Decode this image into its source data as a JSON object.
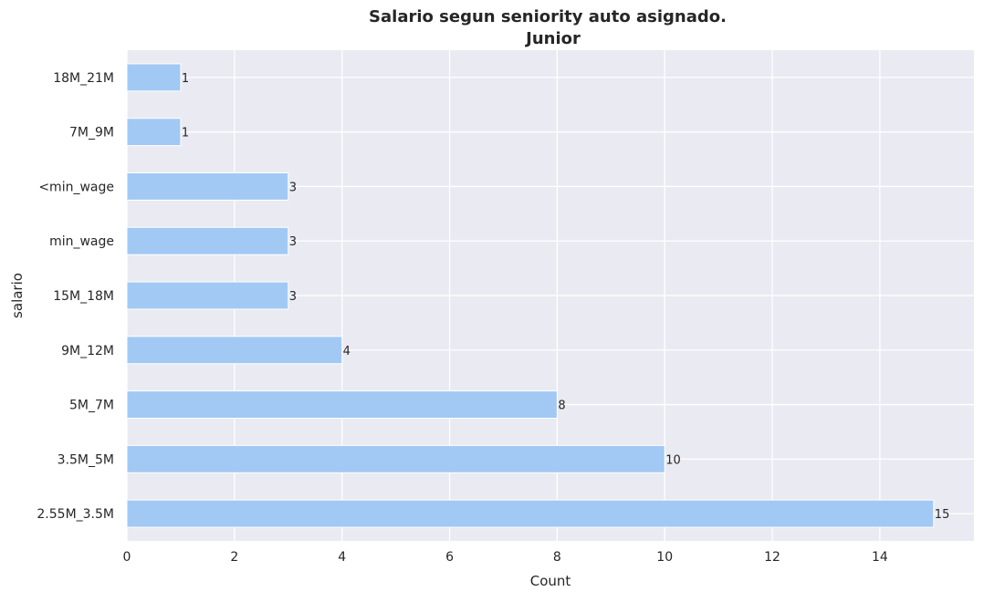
{
  "chart_data": {
    "type": "bar",
    "orientation": "horizontal",
    "title": "Salario segun seniority auto asignado.",
    "subtitle": "Junior",
    "xlabel": "Count",
    "ylabel": "salario",
    "categories": [
      "18M_21M",
      "7M_9M",
      "<min_wage",
      "min_wage",
      "15M_18M",
      "9M_12M",
      "5M_7M",
      "3.5M_5M",
      "2.55M_3.5M"
    ],
    "values": [
      1,
      1,
      3,
      3,
      3,
      4,
      8,
      10,
      15
    ],
    "data_labels": [
      "1",
      "1",
      "3",
      "3",
      "3",
      "4",
      "8",
      "10",
      "15"
    ],
    "xlim": [
      0,
      15.75
    ],
    "xticks": [
      "0",
      "2",
      "4",
      "6",
      "8",
      "10",
      "12",
      "14"
    ],
    "xtick_values": [
      0,
      2,
      4,
      6,
      8,
      10,
      12,
      14
    ],
    "grid": true,
    "legend": "none",
    "colors": {
      "bar": "#a1c9f4",
      "plot_background": "#eaeaf2",
      "grid": "#ffffff",
      "text": "#262626"
    }
  }
}
